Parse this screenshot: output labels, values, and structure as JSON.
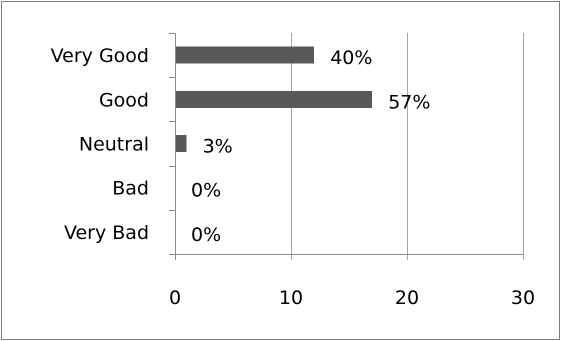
{
  "chart_data": {
    "type": "bar",
    "orientation": "horizontal",
    "categories": [
      "Very Good",
      "Good",
      "Neutral",
      "Bad",
      "Very Bad"
    ],
    "values": [
      12,
      17,
      1,
      0,
      0
    ],
    "data_labels": [
      "40%",
      "57%",
      "3%",
      "0%",
      "0%"
    ],
    "x_ticks": [
      0,
      10,
      20,
      30
    ],
    "xlim": [
      0,
      30
    ],
    "grid": "vertical",
    "legend": "none",
    "colors": {
      "bar": "#595959",
      "grid": "#a6a6a6"
    }
  }
}
